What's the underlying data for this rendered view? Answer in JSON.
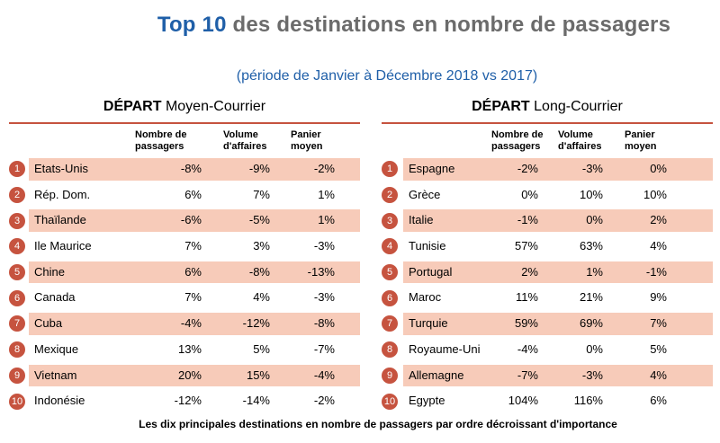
{
  "title": {
    "part1": "Top 10",
    "part2": "des destinations  en nombre de passagers"
  },
  "subtitle": "(période de Janvier à Décembre 2018 vs 2017)",
  "tables": {
    "moyen": {
      "title_bold": "DÉPART",
      "title_rest": "Moyen-Courrier",
      "headers": [
        "Nombre de passagers",
        "Volume d'affaires",
        "Panier moyen"
      ],
      "rows": [
        {
          "rank": "1",
          "name": "Etats-Unis",
          "passagers": "-8%",
          "volume": "-9%",
          "panier": "-2%",
          "shaded": true
        },
        {
          "rank": "2",
          "name": "Rép. Dom.",
          "passagers": "6%",
          "volume": "7%",
          "panier": "1%",
          "shaded": false
        },
        {
          "rank": "3",
          "name": "Thaïlande",
          "passagers": "-6%",
          "volume": "-5%",
          "panier": "1%",
          "shaded": true
        },
        {
          "rank": "4",
          "name": "Ile Maurice",
          "passagers": "7%",
          "volume": "3%",
          "panier": "-3%",
          "shaded": false
        },
        {
          "rank": "5",
          "name": "Chine",
          "passagers": "6%",
          "volume": "-8%",
          "panier": "-13%",
          "shaded": true
        },
        {
          "rank": "6",
          "name": "Canada",
          "passagers": "7%",
          "volume": "4%",
          "panier": "-3%",
          "shaded": false
        },
        {
          "rank": "7",
          "name": "Cuba",
          "passagers": "-4%",
          "volume": "-12%",
          "panier": "-8%",
          "shaded": true
        },
        {
          "rank": "8",
          "name": "Mexique",
          "passagers": "13%",
          "volume": "5%",
          "panier": "-7%",
          "shaded": false
        },
        {
          "rank": "9",
          "name": "Vietnam",
          "passagers": "20%",
          "volume": "15%",
          "panier": "-4%",
          "shaded": true
        },
        {
          "rank": "10",
          "name": "Indonésie",
          "passagers": "-12%",
          "volume": "-14%",
          "panier": "-2%",
          "shaded": false
        }
      ]
    },
    "long": {
      "title_bold": "DÉPART",
      "title_rest": "Long-Courrier",
      "headers": [
        "Nombre de passagers",
        "Volume d'affaires",
        "Panier moyen"
      ],
      "rows": [
        {
          "rank": "1",
          "name": "Espagne",
          "passagers": "-2%",
          "volume": "-3%",
          "panier": "0%",
          "shaded": true
        },
        {
          "rank": "2",
          "name": "Grèce",
          "passagers": "0%",
          "volume": "10%",
          "panier": "10%",
          "shaded": false
        },
        {
          "rank": "3",
          "name": "Italie",
          "passagers": "-1%",
          "volume": "0%",
          "panier": "2%",
          "shaded": true
        },
        {
          "rank": "4",
          "name": "Tunisie",
          "passagers": "57%",
          "volume": "63%",
          "panier": "4%",
          "shaded": false
        },
        {
          "rank": "5",
          "name": "Portugal",
          "passagers": "2%",
          "volume": "1%",
          "panier": "-1%",
          "shaded": true
        },
        {
          "rank": "6",
          "name": "Maroc",
          "passagers": "11%",
          "volume": "21%",
          "panier": "9%",
          "shaded": false
        },
        {
          "rank": "7",
          "name": "Turquie",
          "passagers": "59%",
          "volume": "69%",
          "panier": "7%",
          "shaded": true
        },
        {
          "rank": "8",
          "name": "Royaume-Uni",
          "passagers": "-4%",
          "volume": "0%",
          "panier": "5%",
          "shaded": false
        },
        {
          "rank": "9",
          "name": "Allemagne",
          "passagers": "-7%",
          "volume": "-3%",
          "panier": "4%",
          "shaded": true
        },
        {
          "rank": "10",
          "name": "Egypte",
          "passagers": "104%",
          "volume": "116%",
          "panier": "6%",
          "shaded": false
        }
      ]
    }
  },
  "footer": "Les dix principales destinations en nombre de passagers par ordre décroissant d'importance",
  "colors": {
    "accent": "#c6533f",
    "shade": "#f7cbb9",
    "title_blue": "#1f5fa8",
    "title_gray": "#6b6b6b"
  }
}
